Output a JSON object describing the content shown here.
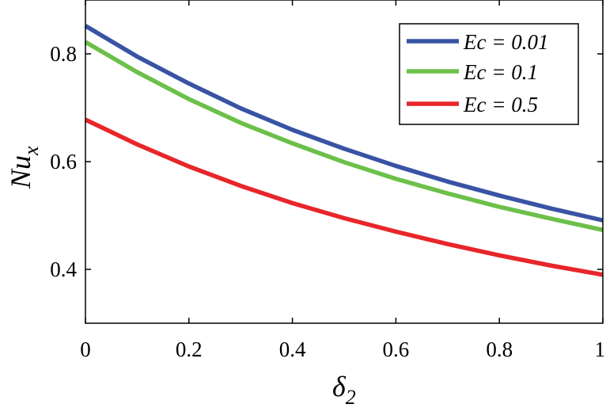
{
  "chart_data": {
    "type": "line",
    "title": "",
    "xlabel": {
      "base": "δ",
      "sub": "2"
    },
    "ylabel": {
      "base": "Nu",
      "sub": "x"
    },
    "xlim": [
      0,
      1
    ],
    "ylim": [
      0.3,
      0.9
    ],
    "xticks": [
      0,
      0.2,
      0.4,
      0.6,
      0.8,
      1
    ],
    "xtick_labels": [
      "0",
      "0.2",
      "0.4",
      "0.6",
      "0.8",
      "1"
    ],
    "yticks": [
      0.4,
      0.6,
      0.8
    ],
    "ytick_labels": [
      "0.4",
      "0.6",
      "0.8"
    ],
    "grid": false,
    "legend_position": "top-right",
    "x": [
      0,
      0.1,
      0.2,
      0.3,
      0.4,
      0.5,
      0.6,
      0.7,
      0.8,
      0.9,
      1.0
    ],
    "series": [
      {
        "name": "Ec = 0.01",
        "color": "#3953a4",
        "values": [
          0.852,
          0.795,
          0.745,
          0.699,
          0.659,
          0.624,
          0.592,
          0.563,
          0.537,
          0.513,
          0.491
        ]
      },
      {
        "name": "Ec = 0.1",
        "color": "#6cc04a",
        "values": [
          0.822,
          0.766,
          0.716,
          0.672,
          0.634,
          0.599,
          0.568,
          0.541,
          0.516,
          0.494,
          0.473
        ]
      },
      {
        "name": "Ec = 0.5",
        "color": "#e8262a",
        "values": [
          0.678,
          0.632,
          0.591,
          0.555,
          0.523,
          0.495,
          0.47,
          0.447,
          0.426,
          0.407,
          0.39
        ]
      }
    ]
  }
}
